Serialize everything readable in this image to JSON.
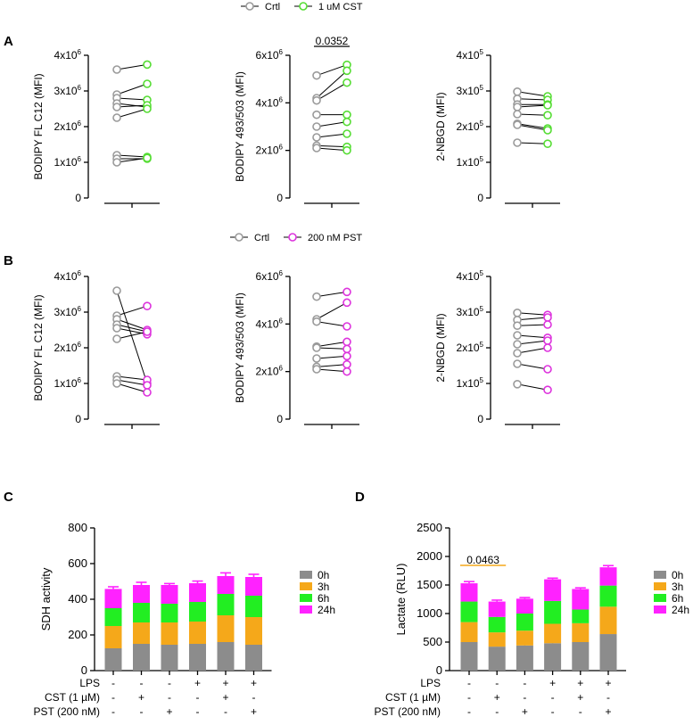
{
  "panel_labels": [
    "A",
    "B",
    "C",
    "D"
  ],
  "colors": {
    "crtl": "#9a9a9a",
    "cst": "#55dd33",
    "pst": "#dd33dd",
    "bar_0h": "#8c8c8c",
    "bar_3h": "#f5a81a",
    "bar_6h": "#22ee22",
    "bar_24h": "#ff22ff",
    "significance_line_D": "#f5a81a",
    "axis": "#000000"
  },
  "legend_A": {
    "crtl": "Crtl",
    "treatment": "1 uM CST"
  },
  "legend_B": {
    "crtl": "Crtl",
    "treatment": "200 nM PST"
  },
  "chart_data": [
    {
      "id": "A1",
      "type": "scatter-paired",
      "panel": "A",
      "ylabel": "BODIPY FL C12 (MFI)",
      "ylim": [
        0,
        4000000
      ],
      "yticks": [
        {
          "v": 0,
          "b": "0",
          "e": ""
        },
        {
          "v": 1000000,
          "b": "1x10",
          "e": "6"
        },
        {
          "v": 2000000,
          "b": "2x10",
          "e": "6"
        },
        {
          "v": 3000000,
          "b": "3x10",
          "e": "6"
        },
        {
          "v": 4000000,
          "b": "4x10",
          "e": "6"
        }
      ],
      "groups": [
        "Crtl",
        "1 uM CST"
      ],
      "pairs": [
        [
          3600000,
          3740000
        ],
        [
          2900000,
          3200000
        ],
        [
          2800000,
          2750000
        ],
        [
          2650000,
          2550000
        ],
        [
          2550000,
          2600000
        ],
        [
          2250000,
          2500000
        ],
        [
          1200000,
          1150000
        ],
        [
          1100000,
          1100000
        ],
        [
          1000000,
          1120000
        ]
      ],
      "annotation": ""
    },
    {
      "id": "A2",
      "type": "scatter-paired",
      "panel": "A",
      "ylabel": "BODIPY 493/503 (MFI)",
      "ylim": [
        0,
        6000000
      ],
      "yticks": [
        {
          "v": 0,
          "b": "0",
          "e": ""
        },
        {
          "v": 2000000,
          "b": "2x10",
          "e": "6"
        },
        {
          "v": 4000000,
          "b": "4x10",
          "e": "6"
        },
        {
          "v": 6000000,
          "b": "6x10",
          "e": "6"
        }
      ],
      "groups": [
        "Crtl",
        "1 uM CST"
      ],
      "pairs": [
        [
          5150000,
          5600000
        ],
        [
          4200000,
          5350000
        ],
        [
          4100000,
          4850000
        ],
        [
          3500000,
          3500000
        ],
        [
          3000000,
          3200000
        ],
        [
          2550000,
          2700000
        ],
        [
          2200000,
          2150000
        ],
        [
          2100000,
          2000000
        ]
      ],
      "annotation": "0.0352"
    },
    {
      "id": "A3",
      "type": "scatter-paired",
      "panel": "A",
      "ylabel": "2-NBGD (MFI)",
      "ylim": [
        0,
        400000
      ],
      "yticks": [
        {
          "v": 0,
          "b": "0",
          "e": ""
        },
        {
          "v": 100000,
          "b": "1x10",
          "e": "5"
        },
        {
          "v": 200000,
          "b": "2x10",
          "e": "5"
        },
        {
          "v": 300000,
          "b": "3x10",
          "e": "5"
        },
        {
          "v": 400000,
          "b": "4x10",
          "e": "5"
        }
      ],
      "groups": [
        "Crtl",
        "1 uM CST"
      ],
      "pairs": [
        [
          298000,
          285000
        ],
        [
          278000,
          275000
        ],
        [
          262000,
          262000
        ],
        [
          255000,
          260000
        ],
        [
          235000,
          232000
        ],
        [
          208000,
          195000
        ],
        [
          205000,
          190000
        ],
        [
          155000,
          152000
        ]
      ],
      "annotation": ""
    },
    {
      "id": "B1",
      "type": "scatter-paired",
      "panel": "B",
      "ylabel": "BODIPY FL C12 (MFI)",
      "ylim": [
        0,
        4000000
      ],
      "yticks": [
        {
          "v": 0,
          "b": "0",
          "e": ""
        },
        {
          "v": 1000000,
          "b": "1x10",
          "e": "6"
        },
        {
          "v": 2000000,
          "b": "2x10",
          "e": "6"
        },
        {
          "v": 3000000,
          "b": "3x10",
          "e": "6"
        },
        {
          "v": 4000000,
          "b": "4x10",
          "e": "6"
        }
      ],
      "groups": [
        "Crtl",
        "200 nM PST"
      ],
      "pairs": [
        [
          3600000,
          1000000
        ],
        [
          2900000,
          3170000
        ],
        [
          2800000,
          2500000
        ],
        [
          2650000,
          2450000
        ],
        [
          2550000,
          2380000
        ],
        [
          2250000,
          2450000
        ],
        [
          1200000,
          1100000
        ],
        [
          1100000,
          950000
        ],
        [
          1000000,
          750000
        ]
      ],
      "annotation": ""
    },
    {
      "id": "B2",
      "type": "scatter-paired",
      "panel": "B",
      "ylabel": "BODIPY 493/503 (MFI)",
      "ylim": [
        0,
        6000000
      ],
      "yticks": [
        {
          "v": 0,
          "b": "0",
          "e": ""
        },
        {
          "v": 2000000,
          "b": "2x10",
          "e": "6"
        },
        {
          "v": 4000000,
          "b": "4x10",
          "e": "6"
        },
        {
          "v": 6000000,
          "b": "6x10",
          "e": "6"
        }
      ],
      "groups": [
        "Crtl",
        "200 nM PST"
      ],
      "pairs": [
        [
          5150000,
          5350000
        ],
        [
          4200000,
          4900000
        ],
        [
          4100000,
          3900000
        ],
        [
          3050000,
          3250000
        ],
        [
          3000000,
          2950000
        ],
        [
          2550000,
          2650000
        ],
        [
          2200000,
          2300000
        ],
        [
          2100000,
          2000000
        ]
      ],
      "annotation": ""
    },
    {
      "id": "B3",
      "type": "scatter-paired",
      "panel": "B",
      "ylabel": "2-NBGD (MFI)",
      "ylim": [
        0,
        400000
      ],
      "yticks": [
        {
          "v": 0,
          "b": "0",
          "e": ""
        },
        {
          "v": 100000,
          "b": "1x10",
          "e": "5"
        },
        {
          "v": 200000,
          "b": "2x10",
          "e": "5"
        },
        {
          "v": 300000,
          "b": "3x10",
          "e": "5"
        },
        {
          "v": 400000,
          "b": "4x10",
          "e": "5"
        }
      ],
      "groups": [
        "Crtl",
        "200 nM PST"
      ],
      "pairs": [
        [
          298000,
          292000
        ],
        [
          278000,
          285000
        ],
        [
          262000,
          265000
        ],
        [
          235000,
          228000
        ],
        [
          210000,
          220000
        ],
        [
          185000,
          200000
        ],
        [
          155000,
          140000
        ],
        [
          98000,
          82000
        ]
      ],
      "annotation": ""
    },
    {
      "id": "C",
      "type": "stacked-bar",
      "panel": "C",
      "ylabel": "SDH activity",
      "ylim": [
        0,
        800
      ],
      "yticks": [
        0,
        200,
        400,
        600,
        800
      ],
      "series": [
        {
          "name": "0h",
          "values": [
            125,
            150,
            145,
            150,
            160,
            145
          ],
          "errors": [
            10,
            12,
            18,
            15,
            50,
            15
          ]
        },
        {
          "name": "3h",
          "values": [
            125,
            120,
            125,
            125,
            150,
            155
          ],
          "errors": [
            15,
            30,
            40,
            20,
            25,
            25
          ]
        },
        {
          "name": "6h",
          "values": [
            100,
            110,
            105,
            110,
            120,
            120
          ],
          "errors": [
            10,
            15,
            12,
            10,
            10,
            15
          ]
        },
        {
          "name": "24h",
          "values": [
            108,
            100,
            105,
            105,
            100,
            105
          ],
          "errors": [
            12,
            15,
            8,
            12,
            18,
            15
          ]
        }
      ],
      "conditions": {
        "labels": [
          "LPS",
          "CST (1 µM)",
          "PST (200 nM)"
        ],
        "rows": [
          [
            "-",
            "-",
            "-",
            "+",
            "+",
            "+"
          ],
          [
            "-",
            "+",
            "-",
            "-",
            "+",
            "-"
          ],
          [
            "-",
            "-",
            "+",
            "-",
            "-",
            "+"
          ]
        ]
      },
      "annotation": ""
    },
    {
      "id": "D",
      "type": "stacked-bar",
      "panel": "D",
      "ylabel": "Lactate (RLU)",
      "ylim": [
        0,
        2500
      ],
      "yticks": [
        0,
        500,
        1000,
        1500,
        2000,
        2500
      ],
      "series": [
        {
          "name": "0h",
          "values": [
            500,
            420,
            440,
            480,
            500,
            640
          ],
          "errors": [
            80,
            60,
            110,
            170,
            60,
            180
          ]
        },
        {
          "name": "3h",
          "values": [
            350,
            250,
            260,
            340,
            330,
            480
          ],
          "errors": [
            40,
            50,
            40,
            30,
            40,
            80
          ]
        },
        {
          "name": "6h",
          "values": [
            360,
            270,
            300,
            400,
            240,
            370
          ],
          "errors": [
            40,
            20,
            50,
            25,
            20,
            30
          ]
        },
        {
          "name": "24h",
          "values": [
            320,
            270,
            260,
            380,
            360,
            320
          ],
          "errors": [
            30,
            25,
            20,
            20,
            20,
            30
          ]
        }
      ],
      "conditions": {
        "labels": [
          "LPS",
          "CST (1 µM)",
          "PST (200 nM)"
        ],
        "rows": [
          [
            "-",
            "-",
            "-",
            "+",
            "+",
            "+"
          ],
          [
            "-",
            "+",
            "-",
            "-",
            "+",
            "-"
          ],
          [
            "-",
            "-",
            "+",
            "-",
            "-",
            "+"
          ]
        ]
      },
      "annotation": "0.0463"
    }
  ]
}
